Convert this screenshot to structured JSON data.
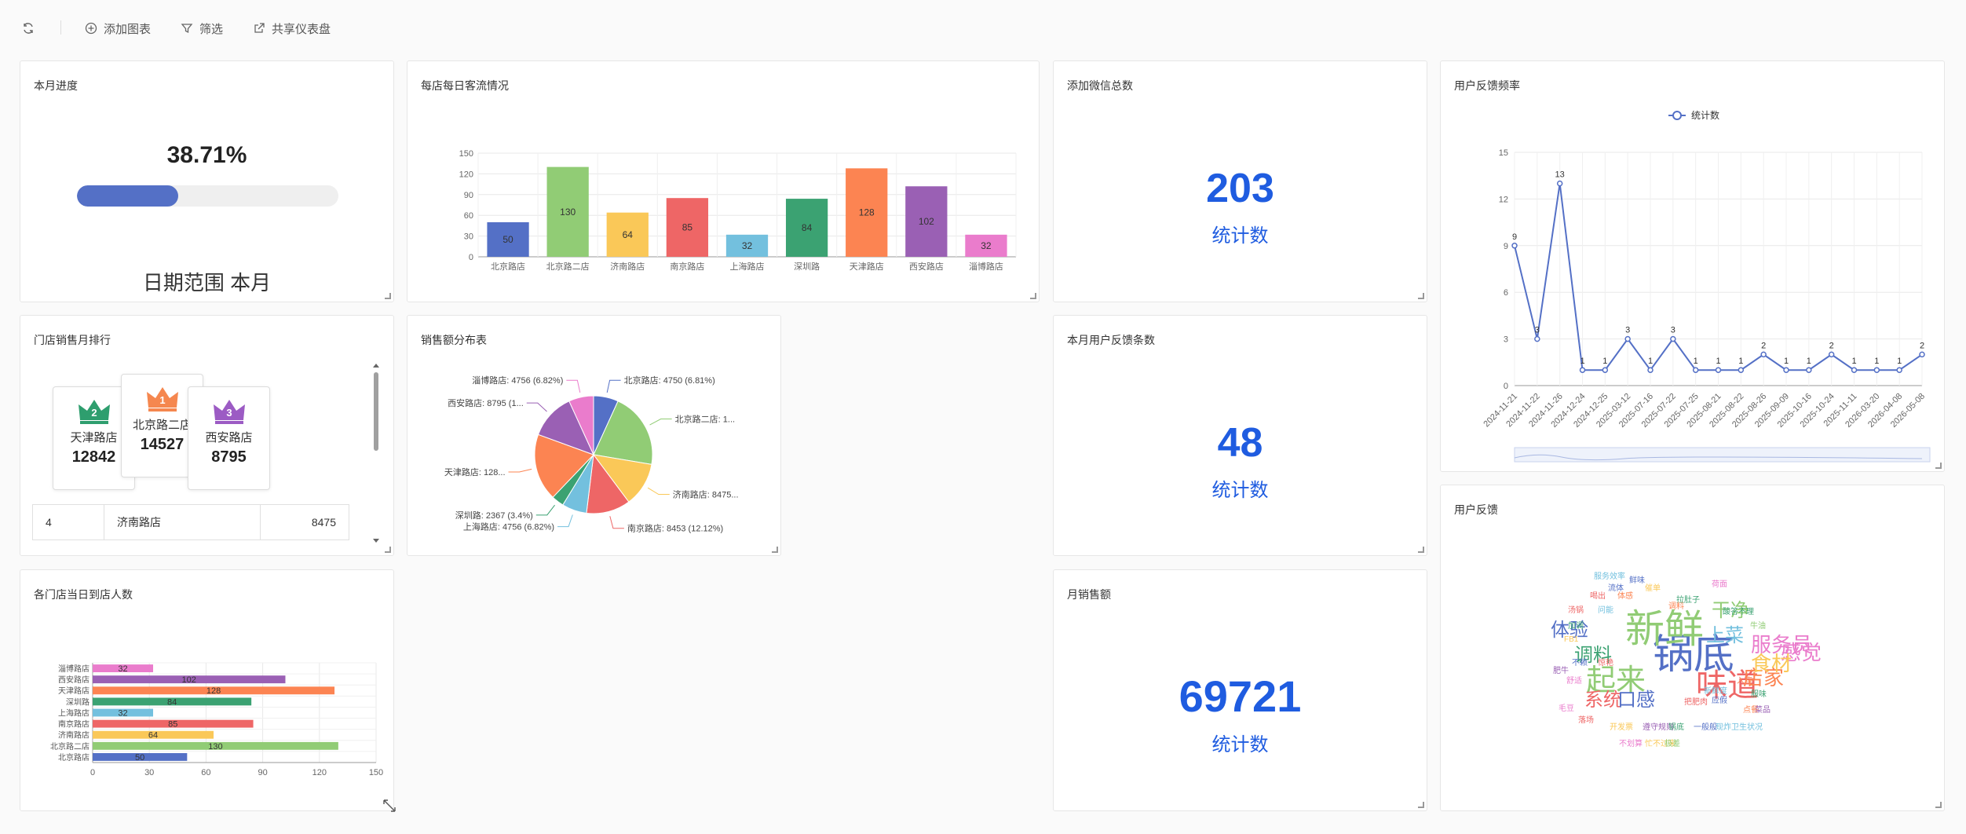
{
  "toolbar": {
    "refresh_icon": "refresh-icon",
    "add_chart": "添加图表",
    "filter": "筛选",
    "share": "共享仪表盘"
  },
  "colors": {
    "primary": "#1f5ce0",
    "palette": [
      "#5470c6",
      "#91cc75",
      "#fac858",
      "#ee6666",
      "#73c0de",
      "#3ba272",
      "#fc8452",
      "#9a60b4",
      "#ea7ccc"
    ]
  },
  "progress": {
    "title": "本月进度",
    "percent_text": "38.71%",
    "value": 0.3871,
    "footer_prefix": "日期范围",
    "footer_value": "本月"
  },
  "daily_traffic": {
    "title": "每店每日客流情况",
    "chart_data": {
      "type": "bar",
      "categories": [
        "北京路店",
        "北京路二店",
        "济南路店",
        "南京路店",
        "上海路店",
        "深圳路",
        "天津路店",
        "西安路店",
        "淄博路店"
      ],
      "values": [
        50,
        130,
        64,
        85,
        32,
        84,
        128,
        102,
        32
      ],
      "yticks": [
        0,
        30,
        60,
        90,
        120,
        150
      ],
      "ylim": [
        0,
        150
      ]
    }
  },
  "wechat_total": {
    "title": "添加微信总数",
    "value": "203",
    "label": "统计数"
  },
  "feedback_freq": {
    "title": "用户反馈频率",
    "legend": "统计数",
    "chart_data": {
      "type": "line",
      "x": [
        "2024-11-21",
        "2024-11-22",
        "2024-11-26",
        "2024-12-24",
        "2024-12-25",
        "2025-03-12",
        "2025-07-16",
        "2025-07-22",
        "2025-07-25",
        "2025-08-21",
        "2025-08-22",
        "2025-08-26",
        "2025-09-09",
        "2025-10-16",
        "2025-10-24",
        "2025-11-11",
        "2026-03-20",
        "2026-04-08",
        "2026-05-08"
      ],
      "values": [
        9,
        3,
        13,
        1,
        1,
        3,
        1,
        3,
        1,
        1,
        1,
        2,
        1,
        1,
        2,
        1,
        1,
        1,
        2
      ],
      "yticks": [
        0,
        3,
        6,
        9,
        12,
        15
      ],
      "ylim": [
        0,
        15
      ]
    }
  },
  "store_rank": {
    "title": "门店销售月排行",
    "top": [
      {
        "rank": "1",
        "name": "北京路二店",
        "value": "14527",
        "color": "#f5874f"
      },
      {
        "rank": "2",
        "name": "天津路店",
        "value": "12842",
        "color": "#2e9e6e"
      },
      {
        "rank": "3",
        "name": "西安路店",
        "value": "8795",
        "color": "#9c5bc4"
      }
    ],
    "rows": [
      {
        "rank": "4",
        "name": "济南路店",
        "value": "8475"
      }
    ]
  },
  "sales_pie": {
    "title": "销售额分布表",
    "chart_data": {
      "type": "pie",
      "series": [
        {
          "name": "北京路店",
          "value": 4750,
          "label": "北京路店: 4750 (6.81%)"
        },
        {
          "name": "北京路二店",
          "value": 14527,
          "label": "北京路二店: 1..."
        },
        {
          "name": "济南路店",
          "value": 8475,
          "label": "济南路店: 8475..."
        },
        {
          "name": "南京路店",
          "value": 8453,
          "label": "南京路店: 8453 (12.12%)"
        },
        {
          "name": "上海路店",
          "value": 4756,
          "label": "上海路店: 4756 (6.82%)"
        },
        {
          "name": "深圳路",
          "value": 2367,
          "label": "深圳路: 2367 (3.4%)"
        },
        {
          "name": "天津路店",
          "value": 12842,
          "label": "天津路店: 128..."
        },
        {
          "name": "西安路店",
          "value": 8795,
          "label": "西安路店: 8795 (1..."
        },
        {
          "name": "淄博路店",
          "value": 4756,
          "label": "淄博路店: 4756 (6.82%)"
        }
      ]
    }
  },
  "feedback_count": {
    "title": "本月用户反馈条数",
    "value": "48",
    "label": "统计数"
  },
  "wordcloud": {
    "title": "用户反馈",
    "words": [
      {
        "t": "锅底",
        "c": "#5470c6",
        "s": 52
      },
      {
        "t": "新鲜",
        "c": "#91cc75",
        "s": 50
      },
      {
        "t": "味道",
        "c": "#ee6666",
        "s": 40
      },
      {
        "t": "起来",
        "c": "#91cc75",
        "s": 38
      },
      {
        "t": "服务员",
        "c": "#ea7ccc",
        "s": 26
      },
      {
        "t": "感觉",
        "c": "#ea7ccc",
        "s": 26
      },
      {
        "t": "店家",
        "c": "#fc8452",
        "s": 26
      },
      {
        "t": "食材",
        "c": "#fac858",
        "s": 26
      },
      {
        "t": "系统",
        "c": "#ee6666",
        "s": 24
      },
      {
        "t": "口感",
        "c": "#5470c6",
        "s": 24
      },
      {
        "t": "体验",
        "c": "#5470c6",
        "s": 24
      },
      {
        "t": "调料",
        "c": "#3ba272",
        "s": 24
      },
      {
        "t": "干净",
        "c": "#91cc75",
        "s": 24
      },
      {
        "t": "上菜",
        "c": "#73c0de",
        "s": 24
      },
      {
        "t": "服务效率",
        "c": "#73c0de",
        "s": 10
      },
      {
        "t": "鲜味",
        "c": "#5470c6",
        "s": 10
      },
      {
        "t": "流体",
        "c": "#5470c6",
        "s": 10
      },
      {
        "t": "催单",
        "c": "#fac858",
        "s": 10
      },
      {
        "t": "喝出",
        "c": "#ee6666",
        "s": 10
      },
      {
        "t": "体感",
        "c": "#fc8452",
        "s": 10
      },
      {
        "t": "拉肚子",
        "c": "#3ba272",
        "s": 10
      },
      {
        "t": "荷面",
        "c": "#ea7ccc",
        "s": 10
      },
      {
        "t": "汤锅",
        "c": "#ee6666",
        "s": 10
      },
      {
        "t": "问能",
        "c": "#73c0de",
        "s": 10
      },
      {
        "t": "调料",
        "c": "#fc8452",
        "s": 10
      },
      {
        "t": "酸答不理",
        "c": "#3ba272",
        "s": 10
      },
      {
        "t": "加调",
        "c": "#3ba272",
        "s": 10
      },
      {
        "t": "牛油",
        "c": "#91cc75",
        "s": 10
      },
      {
        "t": "FB1",
        "c": "#fac858",
        "s": 10
      },
      {
        "t": "不赖",
        "c": "#5470c6",
        "s": 10
      },
      {
        "t": "惊艳",
        "c": "#ee6666",
        "s": 10
      },
      {
        "t": "肥牛",
        "c": "#9a60b4",
        "s": 10
      },
      {
        "t": "舒适",
        "c": "#ea7ccc",
        "s": 10
      },
      {
        "t": "入座",
        "c": "#fc8452",
        "s": 10
      },
      {
        "t": "新鲜度",
        "c": "#73c0de",
        "s": 10
      },
      {
        "t": "服味",
        "c": "#3ba272",
        "s": 10
      },
      {
        "t": "应假",
        "c": "#5470c6",
        "s": 10
      },
      {
        "t": "把肥肉",
        "c": "#ee6666",
        "s": 10
      },
      {
        "t": "点餐",
        "c": "#fc8452",
        "s": 10
      },
      {
        "t": "菜品",
        "c": "#9a60b4",
        "s": 10
      },
      {
        "t": "落场",
        "c": "#ee6666",
        "s": 10
      },
      {
        "t": "开发票",
        "c": "#fac858",
        "s": 10
      },
      {
        "t": "遵守规则",
        "c": "#9a60b4",
        "s": 10
      },
      {
        "t": "锅底",
        "c": "#3ba272",
        "s": 10
      },
      {
        "t": "一般般",
        "c": "#5470c6",
        "s": 10
      },
      {
        "t": "现炸",
        "c": "#73c0de",
        "s": 10
      },
      {
        "t": "卫生状况",
        "c": "#73c0de",
        "s": 10
      },
      {
        "t": "忙不过来",
        "c": "#fac858",
        "s": 10
      },
      {
        "t": "极差",
        "c": "#91cc75",
        "s": 10
      },
      {
        "t": "不划算",
        "c": "#ea7ccc",
        "s": 10
      },
      {
        "t": "毛豆",
        "c": "#ea7ccc",
        "s": 10
      }
    ]
  },
  "daily_visitors": {
    "title": "各门店当日到店人数",
    "chart_data": {
      "type": "bar",
      "orientation": "horizontal",
      "categories": [
        "北京路店",
        "北京路二店",
        "济南路店",
        "南京路店",
        "上海路店",
        "深圳路",
        "天津路店",
        "西安路店",
        "淄博路店"
      ],
      "values": [
        50,
        130,
        64,
        85,
        32,
        84,
        128,
        102,
        32
      ],
      "xticks": [
        0,
        30,
        60,
        90,
        120,
        150
      ],
      "xlim": [
        0,
        150
      ]
    }
  },
  "monthly_sales": {
    "title": "月销售额",
    "value": "69721",
    "label": "统计数"
  }
}
